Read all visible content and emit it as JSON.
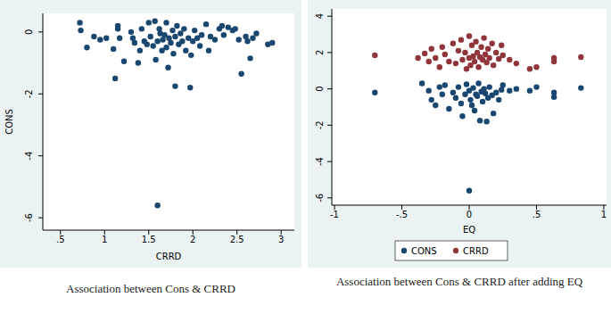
{
  "chart_data": [
    {
      "type": "scatter",
      "title": "Association between Cons & CRRD",
      "x_label": "CRRD",
      "y_label": "CONS",
      "color": "#1a476f",
      "marker": "circle",
      "grid": false,
      "xlim": [
        0.3,
        3.15
      ],
      "ylim": [
        -6.4,
        0.6
      ],
      "xticks": [
        {
          "value": 0.5,
          "label": ".5"
        },
        1,
        {
          "value": 1.5,
          "label": "1.5"
        },
        2,
        {
          "value": 2.5,
          "label": "2.5"
        },
        3
      ],
      "yticks": [
        -6,
        -4,
        -2,
        0
      ],
      "x": [
        0.72,
        0.73,
        0.8,
        0.88,
        0.95,
        1.02,
        1.1,
        1.12,
        1.15,
        1.15,
        1.17,
        1.22,
        1.3,
        1.32,
        1.34,
        1.38,
        1.4,
        1.42,
        1.45,
        1.48,
        1.5,
        1.52,
        1.55,
        1.57,
        1.58,
        1.6,
        1.6,
        1.62,
        1.63,
        1.65,
        1.66,
        1.68,
        1.7,
        1.7,
        1.72,
        1.73,
        1.75,
        1.77,
        1.78,
        1.8,
        1.8,
        1.82,
        1.84,
        1.86,
        1.88,
        1.9,
        1.92,
        1.95,
        1.97,
        1.98,
        2.0,
        2.02,
        2.05,
        2.08,
        2.1,
        2.15,
        2.18,
        2.2,
        2.25,
        2.3,
        2.33,
        2.35,
        2.4,
        2.45,
        2.48,
        2.52,
        2.55,
        2.6,
        2.62,
        2.65,
        2.68,
        2.72,
        2.85,
        2.9
      ],
      "values": [
        0.3,
        0.05,
        -0.5,
        -0.15,
        -0.25,
        -0.2,
        -0.55,
        -1.5,
        0.2,
        0.1,
        -0.2,
        -0.95,
        0.0,
        -0.2,
        -0.35,
        -1.0,
        -0.6,
        0.1,
        -0.3,
        -0.4,
        0.3,
        -0.15,
        -0.45,
        0.35,
        -0.9,
        -5.6,
        -0.3,
        0.1,
        -0.05,
        -0.6,
        -0.25,
        -0.1,
        0.3,
        -0.5,
        -1.15,
        -0.2,
        -0.35,
        0.05,
        -0.7,
        -1.75,
        -0.15,
        0.2,
        -0.4,
        -0.05,
        -0.3,
        0.1,
        -0.6,
        -0.2,
        -1.8,
        -0.75,
        -0.3,
        0.05,
        -0.2,
        -0.45,
        -0.1,
        0.25,
        -0.6,
        -0.15,
        -0.25,
        0.1,
        0.2,
        -0.1,
        0.15,
        0.05,
        0.1,
        -0.25,
        -1.35,
        -0.15,
        -0.3,
        -0.85,
        -0.2,
        -0.05,
        -0.4,
        -0.35
      ]
    },
    {
      "type": "scatter",
      "title": "Association between Cons & CRRD after adding EQ",
      "x_label": "EQ",
      "marker": "circle",
      "grid": false,
      "legend": "bottom",
      "xlim": [
        -1.02,
        1.02
      ],
      "ylim": [
        -6.4,
        4.4
      ],
      "xticks": [
        -1,
        {
          "value": -0.5,
          "label": "-.5"
        },
        0,
        {
          "value": 0.5,
          "label": ".5"
        },
        1
      ],
      "yticks": [
        -6,
        -4,
        -2,
        0,
        2,
        4
      ],
      "series": [
        {
          "name": "CONS",
          "color": "#1a476f",
          "x": [
            -0.7,
            -0.35,
            -0.3,
            -0.28,
            -0.25,
            -0.22,
            -0.2,
            -0.18,
            -0.15,
            -0.12,
            -0.1,
            -0.08,
            -0.06,
            -0.05,
            -0.03,
            -0.02,
            0,
            0,
            0.01,
            0.02,
            0.03,
            0.04,
            0.05,
            0.06,
            0.07,
            0.08,
            0.09,
            0.1,
            0.11,
            0.12,
            0.13,
            0.14,
            0.15,
            0.17,
            0.18,
            0.2,
            0.22,
            0.24,
            0.25,
            0.3,
            0.35,
            0.45,
            0.5,
            0.63,
            0.63,
            0.83
          ],
          "values": [
            -0.2,
            0.3,
            -0.1,
            -0.6,
            -0.9,
            0.1,
            -0.3,
            0.2,
            -1.1,
            -0.2,
            -0.5,
            0.1,
            -0.8,
            -1.5,
            -0.3,
            0.25,
            -5.6,
            -0.1,
            -0.6,
            -0.9,
            0.05,
            -1.2,
            -0.3,
            -0.4,
            0.3,
            -1.75,
            -0.15,
            -0.7,
            0.0,
            -0.25,
            -1.8,
            -0.5,
            0.1,
            -0.35,
            -1.35,
            -0.2,
            -0.6,
            -0.05,
            0.2,
            -0.1,
            0.0,
            -0.1,
            0.1,
            -0.2,
            -0.45,
            0.05
          ]
        },
        {
          "name": "CRRD",
          "color": "#90353b",
          "x": [
            -0.7,
            -0.38,
            -0.33,
            -0.3,
            -0.28,
            -0.25,
            -0.22,
            -0.2,
            -0.18,
            -0.15,
            -0.12,
            -0.1,
            -0.08,
            -0.06,
            -0.05,
            -0.03,
            -0.02,
            0,
            0,
            0.01,
            0.02,
            0.03,
            0.04,
            0.05,
            0.06,
            0.07,
            0.08,
            0.09,
            0.1,
            0.11,
            0.12,
            0.13,
            0.14,
            0.15,
            0.17,
            0.18,
            0.2,
            0.22,
            0.24,
            0.25,
            0.3,
            0.35,
            0.45,
            0.5,
            0.63,
            0.63,
            0.83
          ],
          "values": [
            1.85,
            1.7,
            1.95,
            1.5,
            2.2,
            1.7,
            1.2,
            2.3,
            1.9,
            1.5,
            2.5,
            1.4,
            2.1,
            2.7,
            1.6,
            2.0,
            1.1,
            2.9,
            1.7,
            1.3,
            2.4,
            1.8,
            1.5,
            2.6,
            2.0,
            1.2,
            1.75,
            2.3,
            1.6,
            2.8,
            1.9,
            1.45,
            2.2,
            1.7,
            2.5,
            1.3,
            2.0,
            1.65,
            2.4,
            1.85,
            1.6,
            1.4,
            1.1,
            1.2,
            1.5,
            1.7,
            1.75
          ]
        }
      ]
    }
  ]
}
